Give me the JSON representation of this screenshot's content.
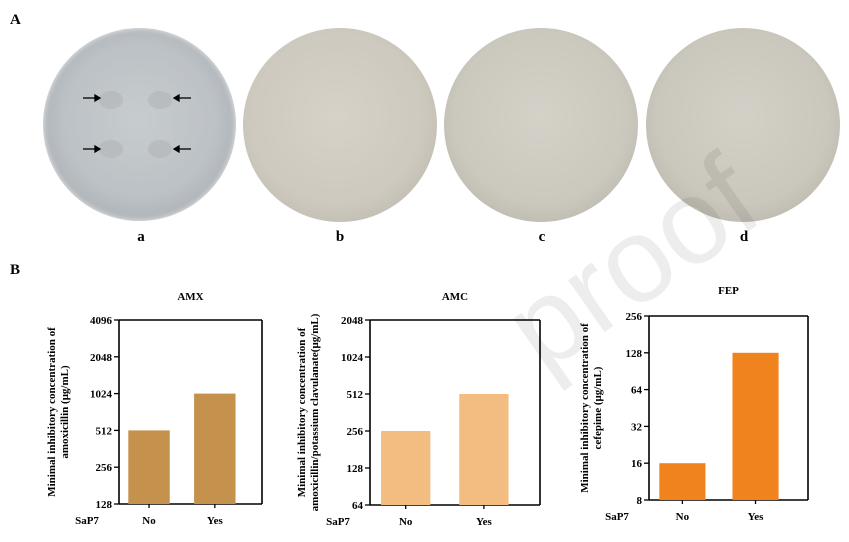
{
  "panels": {
    "A": "A",
    "B": "B"
  },
  "plates": [
    {
      "label": "a",
      "arrows": 4
    },
    {
      "label": "b"
    },
    {
      "label": "c"
    },
    {
      "label": "d"
    }
  ],
  "colors": {
    "amx": "#c4924c",
    "amc": "#f3bd81",
    "fep": "#f0831d",
    "plate_a": "#c4c9cd",
    "plate_bcd": "#d0cdc4"
  },
  "chart_data": [
    {
      "type": "bar",
      "title": "AMX",
      "ylabel": "Minimal inhibitory concentration of amoxicillin (μg/mL)",
      "ylabel_lines": [
        "Minimal inhibitory concentration of",
        "amoxicillin (μg/mL)"
      ],
      "xlabel_prefix": "SaP7",
      "categories": [
        "No",
        "Yes"
      ],
      "values": [
        512,
        1024
      ],
      "yscale": "log2",
      "ylim": [
        128,
        4096
      ],
      "yticks": [
        128,
        256,
        512,
        1024,
        2048,
        4096
      ],
      "grid": false
    },
    {
      "type": "bar",
      "title": "AMC",
      "ylabel": "Minimal inhibitory concentration of amoxicillin/potassium clavulanate(μg/mL)",
      "ylabel_lines": [
        "Minimal inhibitory concentration of",
        "amoxicillin/potassium clavulanate(μg/mL)"
      ],
      "xlabel_prefix": "SaP7",
      "categories": [
        "No",
        "Yes"
      ],
      "values": [
        256,
        512
      ],
      "yscale": "log2",
      "ylim": [
        64,
        2048
      ],
      "yticks": [
        64,
        128,
        256,
        512,
        1024,
        2048
      ],
      "grid": false
    },
    {
      "type": "bar",
      "title": "FEP",
      "ylabel": "Minimal inhibitory concentration of cefepime (μg/mL)",
      "ylabel_lines": [
        "Minimal inhibitory concentration of",
        "cefepime (μg/mL)"
      ],
      "xlabel_prefix": "SaP7",
      "categories": [
        "No",
        "Yes"
      ],
      "values": [
        16,
        128
      ],
      "yscale": "log2",
      "ylim": [
        8,
        256
      ],
      "yticks": [
        8,
        16,
        32,
        64,
        128,
        256
      ],
      "grid": false
    }
  ],
  "watermark": "proof"
}
